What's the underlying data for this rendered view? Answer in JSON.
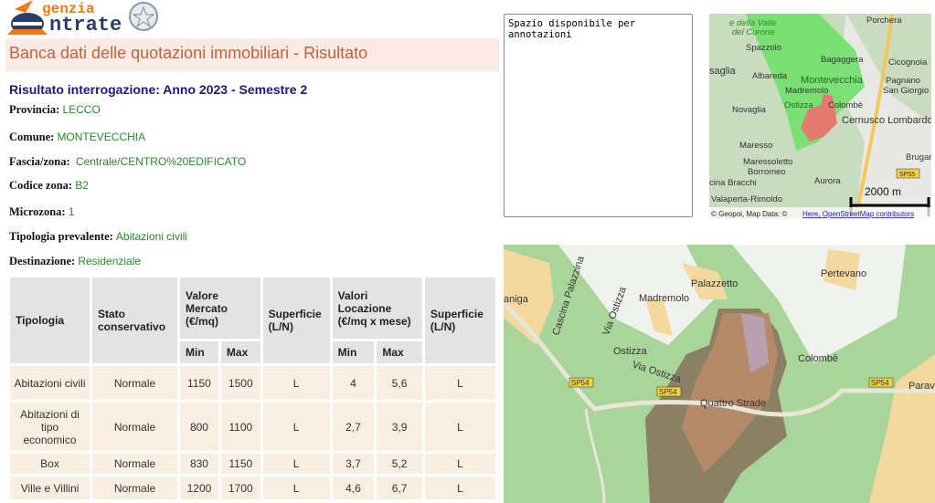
{
  "logo": {
    "line1": "genzia",
    "line2": "ntrate",
    "alt": "Agenzia Entrate"
  },
  "header": {
    "title": "Banca dati delle quotazioni immobiliari - Risultato"
  },
  "result": {
    "title": "Risultato interrogazione: Anno 2023 - Semestre 2",
    "fields": [
      {
        "label": "Provincia:",
        "value": "LECCO"
      },
      {
        "label": "Comune:",
        "value": "MONTEVECCHIA"
      },
      {
        "label": "Fascia/zona:",
        "value": "Centrale/CENTRO%20EDIFICATO"
      },
      {
        "label": "Codice zona:",
        "value": "B2"
      },
      {
        "label": "Microzona:",
        "value": "1"
      },
      {
        "label": "Tipologia prevalente:",
        "value": "Abitazioni civili"
      },
      {
        "label": "Destinazione:",
        "value": "Residenziale"
      }
    ]
  },
  "table": {
    "headers": {
      "tipologia": "Tipologia",
      "stato": "Stato conservativo",
      "valore": "Valore Mercato (€/mq)",
      "superficie1": "Superficie (L/N)",
      "locazione": "Valori Locazione (€/mq x mese)",
      "superficie2": "Superficie (L/N)",
      "min": "Min",
      "max": "Max"
    },
    "rows": [
      [
        "Abitazioni civili",
        "Normale",
        "1150",
        "1500",
        "L",
        "4",
        "5,6",
        "L"
      ],
      [
        "Abitazioni di tipo economico",
        "Normale",
        "800",
        "1100",
        "L",
        "2,7",
        "3,9",
        "L"
      ],
      [
        "Box",
        "Normale",
        "830",
        "1150",
        "L",
        "3,7",
        "5,2",
        "L"
      ],
      [
        "Ville e Villini",
        "Normale",
        "1200",
        "1700",
        "L",
        "4,6",
        "6,7",
        "L"
      ]
    ]
  },
  "notes": {
    "value": "Spazio disponibile per annotazioni"
  },
  "mini_map": {
    "labels": [
      "e della Valle",
      "del Curone",
      "Spazzolo",
      "Porchera",
      "Bagaggera",
      "Cicognola",
      "saglia",
      "Albareda",
      "Montevecchia",
      "Pagnano",
      "San Giorgio",
      "Madremolo",
      "Ostizza",
      "Colombè",
      "Novaglia",
      "Cernusco Lombardo",
      "Maresso",
      "Maressoletto",
      "Borromeo",
      "cina Bracchi",
      "Aurora",
      "Brugar",
      "Valaperta-Rimoldo"
    ],
    "scale": "2000 m",
    "road": "SP55",
    "attribution": "© Geopoi, Map Data: ©",
    "attribution_link": "Here, OpenStreetMap contributors"
  },
  "big_map": {
    "labels": [
      "aniga",
      "Cascina Palazzina",
      "Via Ostizza",
      "Madremolo",
      "Palazzetto",
      "Pertevano",
      "Ostizza",
      "Via Ostizza",
      "Colombè",
      "Quattro Strade",
      "Parav"
    ],
    "roads": [
      "SP54",
      "SP54",
      "SP54"
    ]
  }
}
